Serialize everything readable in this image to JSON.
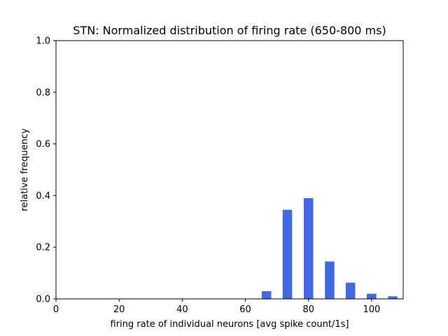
{
  "chart_data": {
    "type": "bar",
    "title": "STN: Normalized distribution of firing rate (650-800 ms)",
    "xlabel": "firing rate of individual neurons [avg spike count/1s]",
    "ylabel": "relative frequency",
    "xlim": [
      0,
      110
    ],
    "ylim": [
      0,
      1.0
    ],
    "x_ticks": [
      0,
      20,
      40,
      60,
      80,
      100
    ],
    "y_ticks": [
      0.0,
      0.2,
      0.4,
      0.6,
      0.8,
      1.0
    ],
    "x_tick_labels": [
      "0",
      "20",
      "40",
      "60",
      "80",
      "100"
    ],
    "y_tick_labels": [
      "0.0",
      "0.2",
      "0.4",
      "0.6",
      "0.8",
      "1.0"
    ],
    "bar_width": 3,
    "x": [
      66.7,
      73.3,
      80.0,
      86.7,
      93.3,
      100.0,
      106.7
    ],
    "values": [
      0.03,
      0.345,
      0.39,
      0.145,
      0.063,
      0.02,
      0.01
    ],
    "color": "#4169e1",
    "grid": false
  }
}
